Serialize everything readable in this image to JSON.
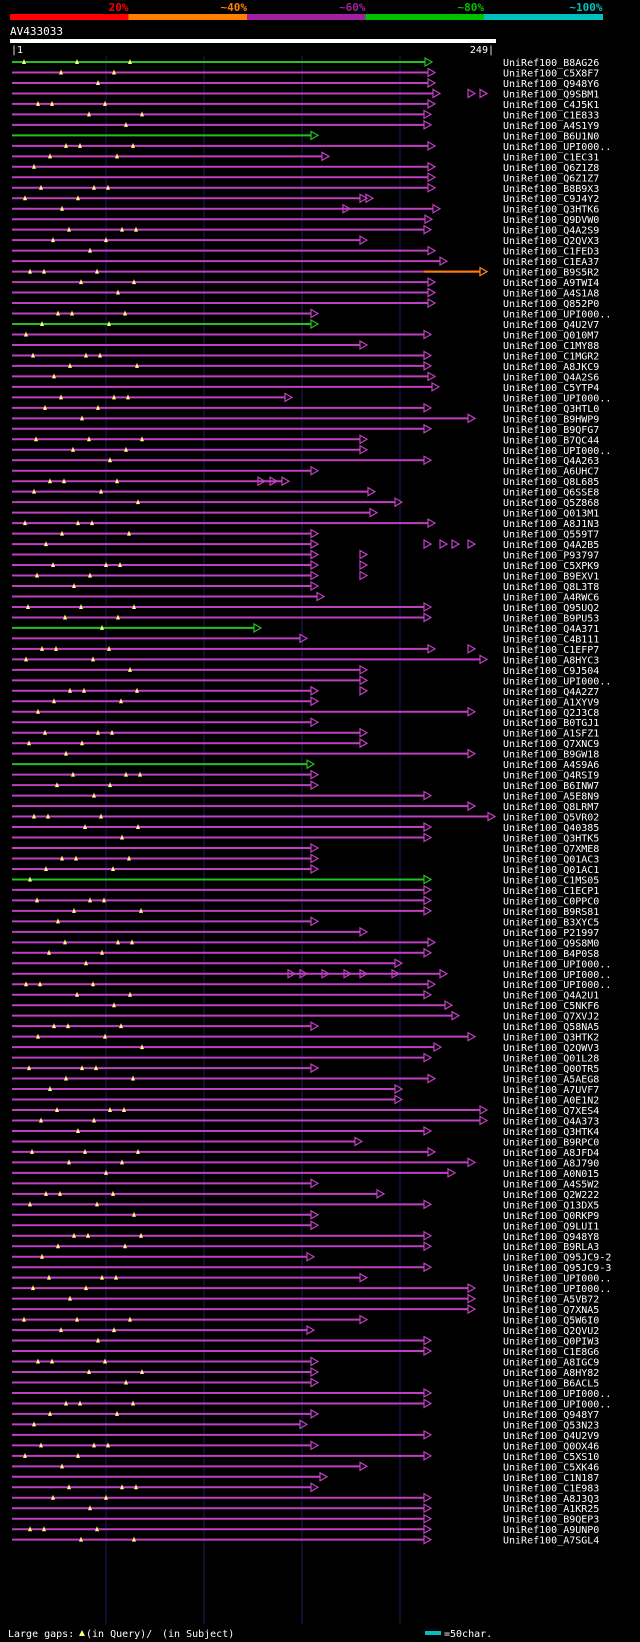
{
  "chart_data": {
    "type": "alignment-overview",
    "title": "AV433033",
    "query_start": 1,
    "query_end": 249,
    "identity_scale": [
      {
        "label": "20%",
        "color": "#ff0000"
      },
      {
        "label": "~40%",
        "color": "#ff7f00"
      },
      {
        "label": "~60%",
        "color": "#a020a0"
      },
      {
        "label": "~80%",
        "color": "#00c000"
      },
      {
        "label": "~100%",
        "color": "#00c0c0"
      }
    ],
    "legend": {
      "gaps_text": "Large gaps:",
      "gaps_query": "(in Query)/",
      "gaps_subject": "(in Subject)",
      "scale_text": "=50char."
    },
    "hits": [
      "UniRef100_B8AG26",
      "UniRef100_C5X8F7",
      "UniRef100_Q948Y6",
      "UniRef100_Q9SBM1",
      "UniRef100_C4J5K1",
      "UniRef100_C1E833",
      "UniRef100_A4S1Y9",
      "UniRef100_B6U1N0",
      "UniRef100_UPI000..",
      "UniRef100_C1EC31",
      "UniRef100_Q6Z1Z8",
      "UniRef100_Q6Z1Z7",
      "UniRef100_B8B9X3",
      "UniRef100_C9J4Y2",
      "UniRef100_Q3HTK6",
      "UniRef100_Q9DVW0",
      "UniRef100_Q4A2S9",
      "UniRef100_Q2QVX3",
      "UniRef100_C1FED3",
      "UniRef100_C1EA37",
      "UniRef100_B9S5R2",
      "UniRef100_A9TWI4",
      "UniRef100_A4S1A8",
      "UniRef100_Q852P0",
      "UniRef100_UPI000..",
      "UniRef100_Q4U2V7",
      "UniRef100_Q010M7",
      "UniRef100_C1MY88",
      "UniRef100_C1MGR2",
      "UniRef100_A8JKC9",
      "UniRef100_Q4A2S6",
      "UniRef100_C5YTP4",
      "UniRef100_UPI000..",
      "UniRef100_Q3HTL0",
      "UniRef100_B9HWP9",
      "UniRef100_B9QFG7",
      "UniRef100_B7QC44",
      "UniRef100_UPI000..",
      "UniRef100_Q4A263",
      "UniRef100_A6UHC7",
      "UniRef100_Q8L685",
      "UniRef100_Q6SSE8",
      "UniRef100_Q5Z868",
      "UniRef100_Q013M1",
      "UniRef100_A8J1N3",
      "UniRef100_Q559T7",
      "UniRef100_Q4A2B5",
      "UniRef100_P93797",
      "UniRef100_C5XPK9",
      "UniRef100_B9EXV1",
      "UniRef100_Q8L3T8",
      "UniRef100_A4RWC6",
      "UniRef100_Q95UQ2",
      "UniRef100_B9PU53",
      "UniRef100_Q4A371",
      "UniRef100_C4B111",
      "UniRef100_C1EFP7",
      "UniRef100_A8HYC3",
      "UniRef100_C9J504",
      "UniRef100_UPI000..",
      "UniRef100_Q4A2Z7",
      "UniRef100_A1XYV9",
      "UniRef100_Q2J3C8",
      "UniRef100_B0TGJ1",
      "UniRef100_A1SFZ1",
      "UniRef100_Q7XNC9",
      "UniRef100_B9GW18",
      "UniRef100_A4S9A6",
      "UniRef100_Q4RSI9",
      "UniRef100_B6INW7",
      "UniRef100_A5E8N9",
      "UniRef100_Q8LRM7",
      "UniRef100_Q5VR02",
      "UniRef100_Q40385",
      "UniRef100_Q3HTK5",
      "UniRef100_Q7XME8",
      "UniRef100_Q01AC3",
      "UniRef100_Q01AC1",
      "UniRef100_C1MS05",
      "UniRef100_C1ECP1",
      "UniRef100_C0PPC0",
      "UniRef100_B9RS81",
      "UniRef100_B3XYC5",
      "UniRef100_P21997",
      "UniRef100_Q9S8M0",
      "UniRef100_B4P0S8",
      "UniRef100_UPI000..",
      "UniRef100_UPI000..",
      "UniRef100_UPI000..",
      "UniRef100_Q4A2U1",
      "UniRef100_C5NKF6",
      "UniRef100_Q7XVJ2",
      "UniRef100_Q58NA5",
      "UniRef100_Q3HTK2",
      "UniRef100_Q2QWV3",
      "UniRef100_Q01L28",
      "UniRef100_Q0OTR5",
      "UniRef100_A5AEG8",
      "UniRef100_A7UVF7",
      "UniRef100_A0E1N2",
      "UniRef100_Q7XES4",
      "UniRef100_Q4A373",
      "UniRef100_Q3HTK4",
      "UniRef100_B9RPC0",
      "UniRef100_A8JFD4",
      "UniRef100_A8J790",
      "UniRef100_A0N015",
      "UniRef100_A4S5W2",
      "UniRef100_Q2W222",
      "UniRef100_Q13DX5",
      "UniRef100_Q0RKP9",
      "UniRef100_Q9LUI1",
      "UniRef100_Q948Y8",
      "UniRef100_B9RLA3",
      "UniRef100_Q95JC9-2",
      "UniRef100_Q95JC9-3",
      "UniRef100_UPI000..",
      "UniRef100_UPI000..",
      "UniRef100_A5VB72",
      "UniRef100_Q7XNA5",
      "UniRef100_Q5W6I0",
      "UniRef100_Q2QVU2",
      "UniRef100_Q0PIW3",
      "UniRef100_C1E8G6",
      "UniRef100_A8IGC9",
      "UniRef100_A8HY82",
      "UniRef100_B6ACL5",
      "UniRef100_UPI000..",
      "UniRef100_UPI000..",
      "UniRef100_Q948Y7",
      "UniRef100_Q53N23",
      "UniRef100_Q4U2V9",
      "UniRef100_Q0OX46",
      "UniRef100_C5XS10",
      "UniRef100_C5XK46",
      "UniRef100_C1N187",
      "UniRef100_C1E983",
      "UniRef100_A8J3Q3",
      "UniRef100_A1KR25",
      "UniRef100_B9QEP3",
      "UniRef100_A9UNP0",
      "UniRef100_A7SGL4"
    ]
  }
}
